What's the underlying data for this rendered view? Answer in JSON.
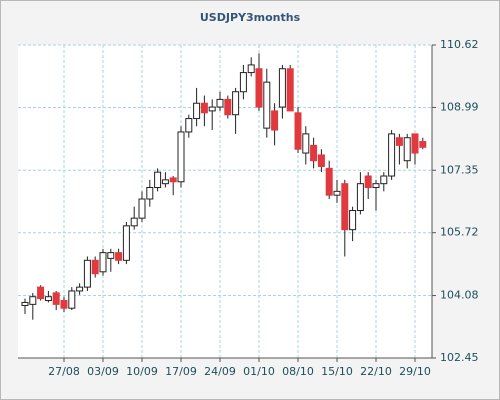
{
  "chart_data": {
    "type": "candlestick",
    "title": "USDJPY3months",
    "categories": [
      null,
      null,
      null,
      null,
      null,
      "27/08",
      null,
      null,
      null,
      null,
      "03/09",
      null,
      null,
      null,
      null,
      "10/09",
      null,
      null,
      null,
      null,
      "17/09",
      null,
      null,
      null,
      null,
      "24/09",
      null,
      null,
      null,
      null,
      "01/10",
      null,
      null,
      null,
      null,
      "08/10",
      null,
      null,
      null,
      null,
      "15/10",
      null,
      null,
      null,
      null,
      "22/10",
      null,
      null,
      null,
      null,
      "29/10",
      null
    ],
    "open": [
      103.82,
      103.85,
      104.3,
      103.95,
      104.15,
      103.95,
      103.75,
      104.2,
      104.3,
      105.0,
      104.7,
      105.05,
      105.2,
      105.0,
      105.9,
      106.1,
      106.6,
      106.9,
      107.0,
      107.15,
      107.05,
      108.35,
      108.7,
      109.1,
      108.9,
      109.0,
      109.2,
      108.8,
      109.4,
      109.9,
      110.0,
      108.45,
      108.9,
      109.0,
      110.0,
      108.85,
      107.8,
      108.0,
      107.75,
      107.4,
      106.7,
      107.0,
      105.8,
      106.3,
      107.2,
      106.9,
      107.0,
      107.2,
      108.2,
      107.6,
      108.3,
      108.1
    ],
    "high": [
      104.0,
      104.15,
      104.35,
      104.2,
      104.2,
      104.05,
      104.3,
      104.4,
      105.1,
      105.1,
      105.3,
      105.3,
      105.3,
      106.0,
      106.4,
      106.8,
      107.1,
      107.4,
      107.3,
      107.2,
      108.5,
      108.8,
      109.5,
      109.3,
      109.2,
      109.4,
      109.3,
      109.5,
      110.1,
      110.3,
      110.4,
      110.0,
      109.1,
      110.1,
      110.1,
      109.0,
      108.5,
      108.2,
      107.9,
      107.6,
      107.1,
      107.1,
      106.4,
      107.3,
      107.3,
      107.1,
      107.3,
      108.4,
      108.3,
      108.3,
      108.3,
      108.2
    ],
    "low": [
      103.6,
      103.45,
      103.95,
      103.9,
      103.7,
      103.65,
      103.7,
      104.1,
      104.2,
      104.55,
      104.6,
      104.7,
      104.9,
      104.9,
      105.8,
      106.0,
      106.4,
      106.8,
      106.9,
      106.7,
      106.9,
      108.2,
      108.5,
      108.5,
      108.4,
      108.9,
      108.7,
      108.3,
      109.2,
      109.8,
      108.9,
      108.2,
      108.0,
      108.7,
      108.9,
      107.8,
      107.5,
      107.4,
      107.3,
      106.6,
      106.5,
      105.1,
      105.5,
      106.2,
      106.6,
      106.3,
      106.8,
      107.1,
      107.5,
      107.4,
      107.5,
      107.9
    ],
    "close": [
      103.9,
      104.05,
      104.0,
      104.05,
      103.85,
      103.75,
      104.2,
      104.3,
      105.0,
      104.65,
      105.2,
      105.2,
      105.0,
      105.9,
      106.1,
      106.6,
      106.9,
      107.3,
      107.1,
      107.05,
      108.35,
      108.7,
      109.1,
      108.85,
      109.0,
      109.2,
      108.8,
      109.4,
      109.9,
      110.1,
      109.0,
      109.65,
      108.4,
      110.0,
      108.9,
      107.9,
      108.3,
      107.6,
      107.45,
      106.7,
      106.8,
      105.8,
      106.3,
      107.0,
      106.9,
      107.0,
      107.2,
      108.3,
      108.0,
      108.2,
      107.8,
      107.95
    ],
    "up_color": "#ffffff",
    "down_color": "#e0393e",
    "ylim": [
      102.45,
      110.62
    ],
    "yticks": [
      102.45,
      104.08,
      105.72,
      107.35,
      108.99,
      110.62
    ],
    "grid": true
  }
}
